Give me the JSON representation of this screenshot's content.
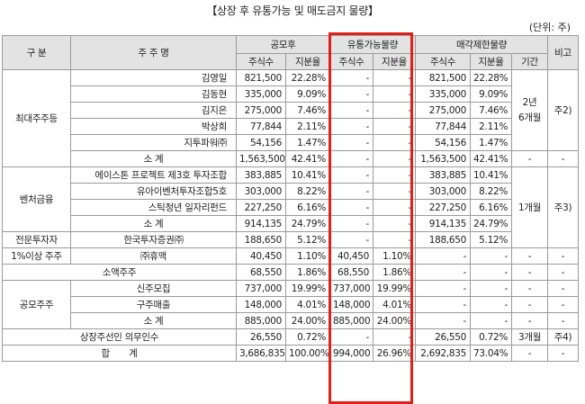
{
  "title": "【상장 후 유통가능 및 매도금지 물량】",
  "unit": "(단위: 주)",
  "headers": {
    "category": "구 분",
    "holder": "주 주 명",
    "public": "공모후",
    "tradable": "유통가능물량",
    "restricted": "매각제한물량",
    "remark": "비고",
    "shares": "주식수",
    "ratio": "지분율",
    "period": "기간"
  },
  "rows": [
    {
      "name": "김영일",
      "p_sh": "821,500",
      "p_r": "22.28%",
      "t_sh": "-",
      "t_r": "-",
      "r_sh": "821,500",
      "r_r": "22.28%"
    },
    {
      "name": "김동현",
      "p_sh": "335,000",
      "p_r": "9.09%",
      "t_sh": "-",
      "t_r": "-",
      "r_sh": "335,000",
      "r_r": "9.09%"
    },
    {
      "name": "김지은",
      "p_sh": "275,000",
      "p_r": "7.46%",
      "t_sh": "-",
      "t_r": "-",
      "r_sh": "275,000",
      "r_r": "7.46%"
    },
    {
      "name": "박상희",
      "p_sh": "77,844",
      "p_r": "2.11%",
      "t_sh": "-",
      "t_r": "-",
      "r_sh": "77,844",
      "r_r": "2.11%"
    },
    {
      "name": "지투파워㈜",
      "p_sh": "54,156",
      "p_r": "1.47%",
      "t_sh": "-",
      "t_r": "-",
      "r_sh": "54,156",
      "r_r": "1.47%"
    },
    {
      "name": "소 계",
      "p_sh": "1,563,500",
      "p_r": "42.41%",
      "t_sh": "-",
      "t_r": "-",
      "r_sh": "1,563,500",
      "r_r": "42.41%"
    },
    {
      "name": "에이스톤 프로젝트 제3호 투자조합",
      "p_sh": "383,885",
      "p_r": "10.41%",
      "t_sh": "-",
      "t_r": "-",
      "r_sh": "383,885",
      "r_r": "10.41%"
    },
    {
      "name": "유아이벤처투자조합5호",
      "p_sh": "303,000",
      "p_r": "8.22%",
      "t_sh": "-",
      "t_r": "-",
      "r_sh": "303,000",
      "r_r": "8.22%"
    },
    {
      "name": "스틱청년 일자리펀드",
      "p_sh": "227,250",
      "p_r": "6.16%",
      "t_sh": "-",
      "t_r": "-",
      "r_sh": "227,250",
      "r_r": "6.16%"
    },
    {
      "name": "소 계",
      "p_sh": "914,135",
      "p_r": "24.79%",
      "t_sh": "-",
      "t_r": "-",
      "r_sh": "914,135",
      "r_r": "24.79%"
    },
    {
      "name": "한국투자증권㈜",
      "p_sh": "188,650",
      "p_r": "5.12%",
      "t_sh": "-",
      "t_r": "-",
      "r_sh": "188,650",
      "r_r": "5.12%",
      "period": "-",
      "remark": "-"
    },
    {
      "name": "㈜휴맥",
      "p_sh": "40,450",
      "p_r": "1.10%",
      "t_sh": "40,450",
      "t_r": "1.10%",
      "r_sh": "-",
      "r_r": "-",
      "period": "-",
      "remark": "-"
    },
    {
      "name": "소액주주",
      "p_sh": "68,550",
      "p_r": "1.86%",
      "t_sh": "68,550",
      "t_r": "1.86%",
      "r_sh": "-",
      "r_r": "-",
      "period": "-",
      "remark": "-"
    },
    {
      "name": "신주모집",
      "p_sh": "737,000",
      "p_r": "19.99%",
      "t_sh": "737,000",
      "t_r": "19.99%",
      "r_sh": "-",
      "r_r": "-",
      "period": "-",
      "remark": "-"
    },
    {
      "name": "구주매출",
      "p_sh": "148,000",
      "p_r": "4.01%",
      "t_sh": "148,000",
      "t_r": "4.01%",
      "r_sh": "-",
      "r_r": "-",
      "period": "-",
      "remark": "-"
    },
    {
      "name": "소 계",
      "p_sh": "885,000",
      "p_r": "24.00%",
      "t_sh": "885,000",
      "t_r": "24.00%",
      "r_sh": "-",
      "r_r": "-",
      "period": "-",
      "remark": "-"
    },
    {
      "name": "상장주선인 의무인수",
      "p_sh": "26,550",
      "p_r": "0.72%",
      "t_sh": "-",
      "t_r": "-",
      "r_sh": "26,550",
      "r_r": "0.72%",
      "period": "3개월",
      "remark": "주4)"
    },
    {
      "name": "합       계",
      "p_sh": "3,686,835",
      "p_r": "100.00%",
      "t_sh": "994,000",
      "t_r": "26.96%",
      "r_sh": "2,692,835",
      "r_r": "73.04%",
      "period": "-",
      "remark": "-"
    }
  ],
  "groups": {
    "major": {
      "label": "최대주주등",
      "period": "2년\n6개월",
      "remark": "주2)",
      "sub_period": "-",
      "sub_remark": "-"
    },
    "venture": {
      "label": "벤처금융",
      "period": "1개월",
      "remark": "주3)"
    },
    "pro": {
      "label": "전문투자자"
    },
    "over1": {
      "label": "1%이상 주주"
    },
    "ipo": {
      "label": "공모주주"
    }
  },
  "highlight_color": "#e0201b"
}
